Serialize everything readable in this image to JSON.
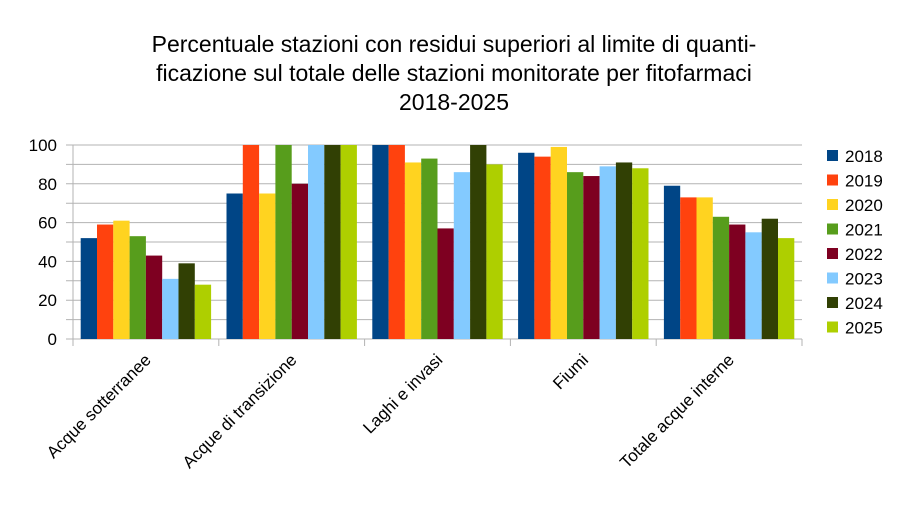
{
  "chart_data": {
    "type": "bar",
    "title_lines": [
      "Percentuale stazioni con residui superiori al limite di quanti-",
      "ficazione sul totale delle stazioni monitorate per fitofarmaci",
      "2018-2025"
    ],
    "xlabel": "",
    "ylabel": "",
    "ylim": [
      0,
      100
    ],
    "yticks": [
      0,
      20,
      40,
      60,
      80,
      100
    ],
    "grid": true,
    "legend_position": "right",
    "categories": [
      "Acque sotterranee",
      "Acque di transizione",
      "Laghi e invasi",
      "Fiumi",
      "Totale acque interne"
    ],
    "series": [
      {
        "name": "2018",
        "color": "#004586",
        "values": [
          52,
          75,
          100,
          96,
          79
        ]
      },
      {
        "name": "2019",
        "color": "#ff420e",
        "values": [
          59,
          100,
          100,
          94,
          73
        ]
      },
      {
        "name": "2020",
        "color": "#ffd320",
        "values": [
          61,
          75,
          91,
          99,
          73
        ]
      },
      {
        "name": "2021",
        "color": "#579d1c",
        "values": [
          53,
          100,
          93,
          86,
          63
        ]
      },
      {
        "name": "2022",
        "color": "#7e0021",
        "values": [
          43,
          80,
          57,
          84,
          59
        ]
      },
      {
        "name": "2023",
        "color": "#83caff",
        "values": [
          31,
          100,
          86,
          89,
          55
        ]
      },
      {
        "name": "2024",
        "color": "#314004",
        "values": [
          39,
          100,
          100,
          91,
          62
        ]
      },
      {
        "name": "2025",
        "color": "#aecf00",
        "values": [
          28,
          100,
          90,
          88,
          52
        ]
      }
    ]
  }
}
